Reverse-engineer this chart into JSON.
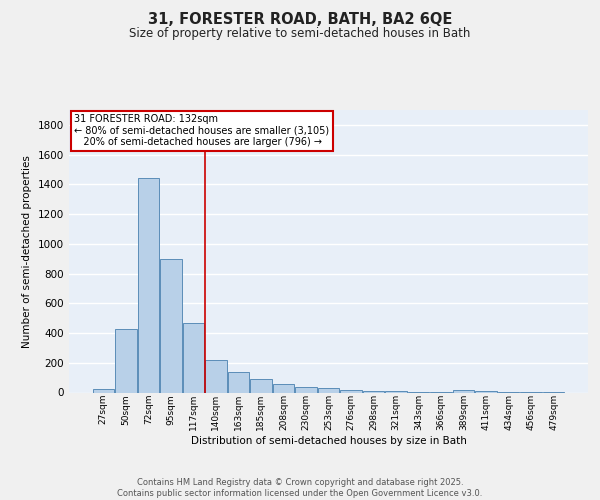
{
  "title": "31, FORESTER ROAD, BATH, BA2 6QE",
  "subtitle": "Size of property relative to semi-detached houses in Bath",
  "xlabel": "Distribution of semi-detached houses by size in Bath",
  "ylabel": "Number of semi-detached properties",
  "bin_labels": [
    "27sqm",
    "50sqm",
    "72sqm",
    "95sqm",
    "117sqm",
    "140sqm",
    "163sqm",
    "185sqm",
    "208sqm",
    "230sqm",
    "253sqm",
    "276sqm",
    "298sqm",
    "321sqm",
    "343sqm",
    "366sqm",
    "389sqm",
    "411sqm",
    "434sqm",
    "456sqm",
    "479sqm"
  ],
  "bar_values": [
    25,
    430,
    1440,
    900,
    470,
    220,
    140,
    90,
    55,
    40,
    30,
    20,
    12,
    8,
    5,
    3,
    15,
    8,
    2,
    2,
    1
  ],
  "bar_color": "#b8d0e8",
  "bar_edge_color": "#5b8db8",
  "bg_color": "#e8eff8",
  "grid_color": "#ffffff",
  "vline_index": 4.5,
  "vline_color": "#cc0000",
  "annotation_line1": "31 FORESTER ROAD: 132sqm",
  "annotation_line2": "← 80% of semi-detached houses are smaller (3,105)",
  "annotation_line3": "   20% of semi-detached houses are larger (796) →",
  "annotation_box_color": "#ffffff",
  "annotation_box_edge": "#cc0000",
  "footer_text": "Contains HM Land Registry data © Crown copyright and database right 2025.\nContains public sector information licensed under the Open Government Licence v3.0.",
  "ylim": [
    0,
    1900
  ],
  "yticks": [
    0,
    200,
    400,
    600,
    800,
    1000,
    1200,
    1400,
    1600,
    1800
  ],
  "fig_bg": "#f0f0f0"
}
